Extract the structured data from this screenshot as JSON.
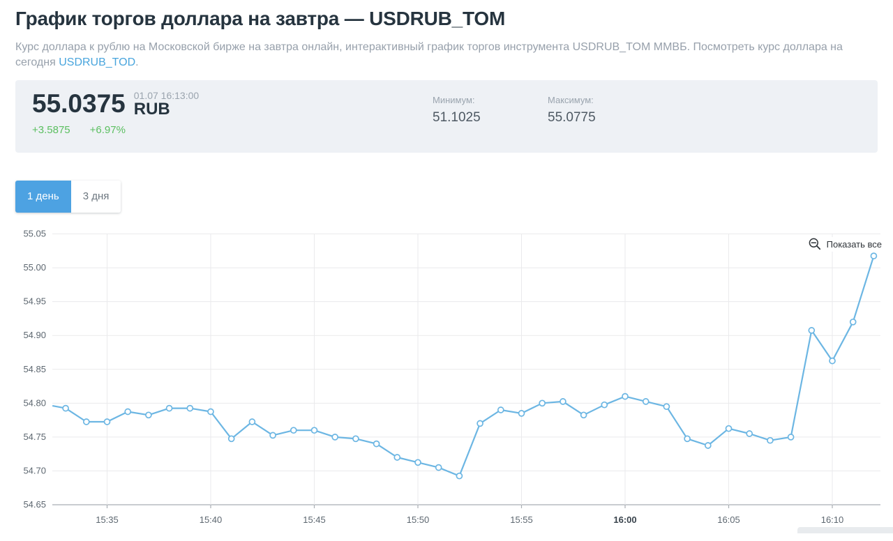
{
  "page": {
    "title": "График торгов доллара на завтра — USDRUB_TOM",
    "subtitle_before_link": "Курс доллара к рублю на Московской бирже на завтра онлайн, интерактивный график торгов инструмента USDRUB_TOM ММВБ. Посмотреть курс доллара на сегодня ",
    "subtitle_link": "USDRUB_TOD",
    "subtitle_after_link": "."
  },
  "quote": {
    "price": "55.0375",
    "currency": "RUB",
    "timestamp": "01.07 16:13:00",
    "change_abs": "+3.5875",
    "change_pct": "+6.97%",
    "min_label": "Минимум:",
    "min_value": "51.1025",
    "max_label": "Максимум:",
    "max_value": "55.0775"
  },
  "tabs": [
    {
      "label": "1 день",
      "active": true
    },
    {
      "label": "3 дня",
      "active": false
    }
  ],
  "chart_controls": {
    "show_all_label": "Показать все",
    "zoom_out_icon": "magnifier-minus"
  },
  "colors": {
    "accent_blue": "#4da2e2",
    "link_blue": "#49a5dd",
    "line_blue": "#6cb6e3",
    "positive_green": "#5bbf60",
    "panel_bg": "#eef1f5",
    "title_dark": "#26343f",
    "grid_gray": "#eaeaec",
    "axis_gray": "#a9aeb3"
  },
  "chart_data": {
    "type": "line",
    "title": "",
    "xlabel": "",
    "ylabel": "",
    "x": [
      "15:33",
      "15:34",
      "15:35",
      "15:36",
      "15:37",
      "15:38",
      "15:39",
      "15:40",
      "15:41",
      "15:42",
      "15:43",
      "15:44",
      "15:45",
      "15:46",
      "15:47",
      "15:48",
      "15:49",
      "15:50",
      "15:51",
      "15:52",
      "15:53",
      "15:54",
      "15:55",
      "15:56",
      "15:57",
      "15:58",
      "15:59",
      "16:00",
      "16:01",
      "16:02",
      "16:03",
      "16:04",
      "16:05",
      "16:06",
      "16:07",
      "16:08",
      "16:09",
      "16:10",
      "16:11",
      "16:12"
    ],
    "values": [
      54.7925,
      54.7725,
      54.7725,
      54.7875,
      54.7825,
      54.7925,
      54.7925,
      54.7875,
      54.7475,
      54.7725,
      54.7525,
      54.76,
      54.76,
      54.75,
      54.7475,
      54.74,
      54.72,
      54.7125,
      54.705,
      54.6925,
      54.77,
      54.79,
      54.785,
      54.8,
      54.8025,
      54.7825,
      54.7975,
      54.81,
      54.8025,
      54.795,
      54.7475,
      54.7375,
      54.7625,
      54.755,
      54.745,
      54.75,
      54.9075,
      54.8625,
      54.92,
      55.0175
    ],
    "leading_edge_value": 54.796,
    "ylim": [
      54.65,
      55.05
    ],
    "y_ticks": [
      "55.05",
      "55.00",
      "54.95",
      "54.90",
      "54.85",
      "54.80",
      "54.75",
      "54.70",
      "54.65"
    ],
    "x_ticks": [
      "15:35",
      "15:40",
      "15:45",
      "15:50",
      "15:55",
      "16:00",
      "16:05",
      "16:10"
    ],
    "bold_x_tick": "16:00",
    "grid": true,
    "legend": "none",
    "line_color": "#6cb6e3",
    "marker": "circle-open"
  }
}
